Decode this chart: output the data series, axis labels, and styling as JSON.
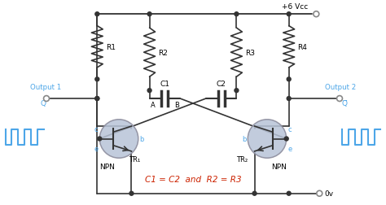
{
  "bg_color": "#ffffff",
  "line_color": "#333333",
  "blue_color": "#4da6e8",
  "red_color": "#cc2200",
  "gray_fill": "#b8c4d8",
  "gray_stroke": "#888899",
  "vcc_label": "+6 Vcc",
  "gnd_label": "0v",
  "out1_label": "Output 1",
  "out2_label": "Output 2",
  "q_label": "Q",
  "qbar_label": "Q̅",
  "c_label": "c",
  "b_label": "b",
  "e_label": "e",
  "r1": "R1",
  "r2": "R2",
  "r3": "R3",
  "r4": "R4",
  "c1": "C1",
  "c2": "C2",
  "a_label": "A",
  "b_cap_label": "B",
  "tr1": "TR₁",
  "tr2": "TR₂",
  "npn": "NPN",
  "equation": "C1 = C2  and  R2 = R3"
}
